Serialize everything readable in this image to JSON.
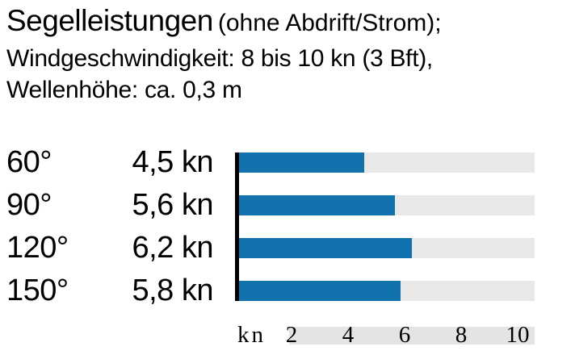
{
  "title": {
    "main": "Segelleistungen",
    "suffix": "(ohne Abdrift/Strom);",
    "wind_line": "Windgeschwindigkeit: 8 bis 10 kn (3 Bft),",
    "wave_line": "Wellenhöhe: ca. 0,3 m"
  },
  "colors": {
    "bar": "#1272ad",
    "track": "#e8e8e8",
    "strip": "#e4e4e4",
    "axis_line": "#000000",
    "text": "#000000"
  },
  "chart_data": {
    "type": "bar",
    "orientation": "horizontal",
    "title": "Segelleistungen (ohne Abdrift/Strom)",
    "subtitle": "Windgeschwindigkeit: 8 bis 10 kn (3 Bft), Wellenhöhe: ca. 0,3 m",
    "categories": [
      "60°",
      "90°",
      "120°",
      "150°"
    ],
    "values": [
      4.5,
      5.6,
      6.2,
      5.8
    ],
    "value_labels": [
      "4,5 kn",
      "5,6 kn",
      "6,2 kn",
      "5,8 kn"
    ],
    "unit": "kn",
    "xlim": [
      0,
      10.6
    ],
    "grid": false,
    "legend": false,
    "axis": {
      "label": "kn",
      "ticks": [
        2,
        4,
        6,
        8,
        10
      ],
      "max": 10.6
    }
  }
}
